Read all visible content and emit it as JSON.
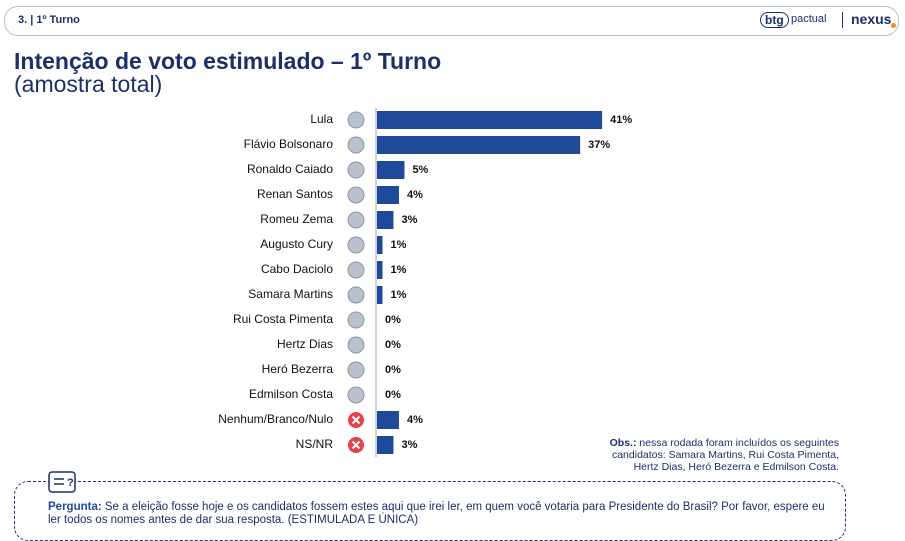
{
  "header": {
    "section": "3. | 1º Turno",
    "logo_btg": "btg",
    "logo_pactual": "pactual",
    "logo_nexus": "nexus"
  },
  "chart_data": {
    "type": "bar",
    "orientation": "horizontal",
    "title": "Intenção de voto estimulado – 1º Turno",
    "subtitle": "(amostra total)",
    "categories": [
      "Lula",
      "Flávio Bolsonaro",
      "Ronaldo Caiado",
      "Renan Santos",
      "Romeu Zema",
      "Augusto Cury",
      "Cabo Daciolo",
      "Samara Martins",
      "Rui Costa Pimenta",
      "Hertz Dias",
      "Heró Bezerra",
      "Edmilson Costa",
      "Nenhum/Branco/Nulo",
      "NS/NR"
    ],
    "values": [
      41,
      37,
      5,
      4,
      3,
      1,
      1,
      1,
      0,
      0,
      0,
      0,
      4,
      3
    ],
    "value_labels": [
      "41%",
      "37%",
      "5%",
      "4%",
      "3%",
      "1%",
      "1%",
      "1%",
      "0%",
      "0%",
      "0%",
      "0%",
      "4%",
      "3%"
    ],
    "color": "#1f4a9c"
  },
  "note": {
    "label": "Obs.:",
    "lines": [
      "nessa rodada foram incluídos os seguintes",
      "candidatos: Samara Martins, Rui Costa Pimenta,",
      "Hertz Dias, Heró Bezerra e Edmilson Costa."
    ]
  },
  "question": {
    "label": "Pergunta:",
    "text": "Se a eleição fosse hoje e os candidatos fossem estes aqui que irei ler, em quem você votaria para Presidente do Brasil? Por favor, espere eu ler todos os nomes antes de dar sua resposta. (ESTIMULADA E ÚNICA)"
  }
}
